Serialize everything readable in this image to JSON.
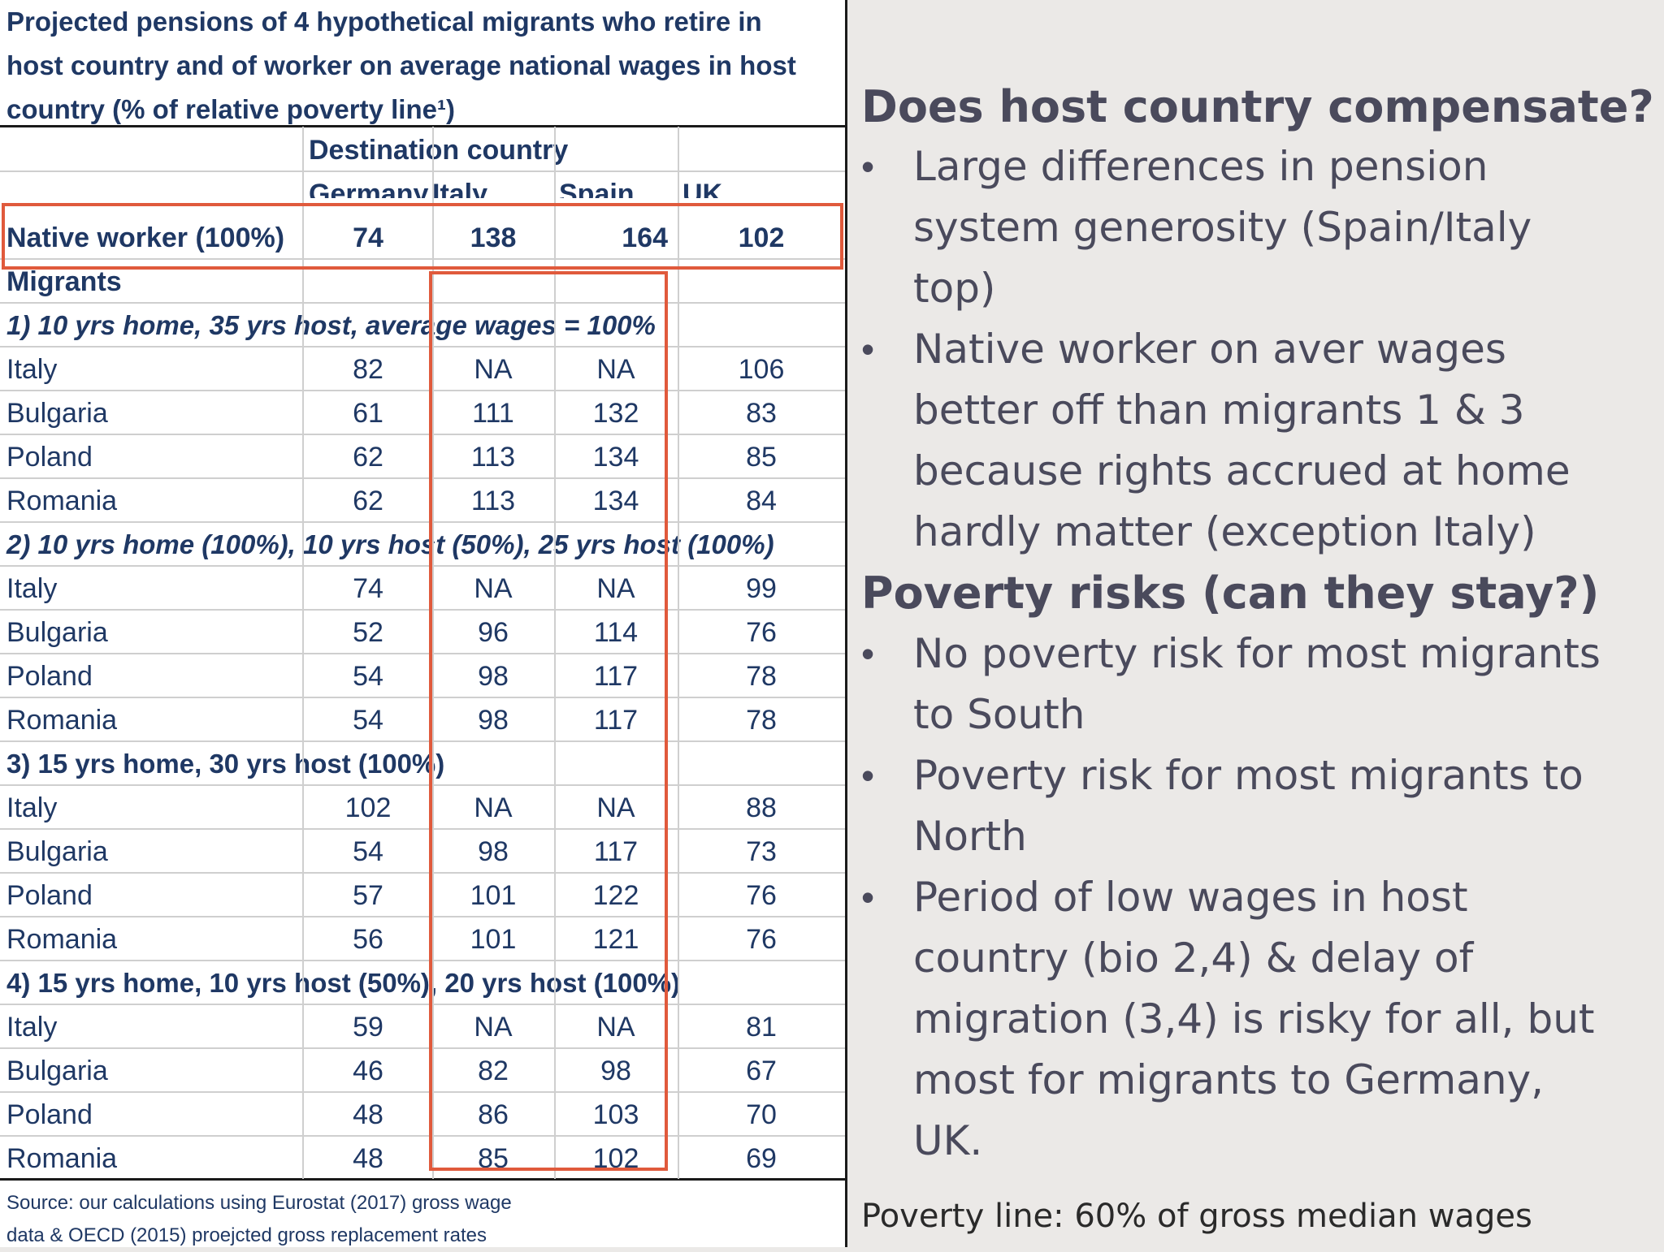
{
  "table": {
    "title_lines": [
      "Projected pensions of 4 hypothetical migrants who retire in",
      "host country and of worker on average national wages in host",
      "country (% of relative poverty line¹)"
    ],
    "group_header": "Destination country",
    "columns": [
      "Germany",
      "Italy",
      "Spain",
      "UK"
    ],
    "native": {
      "label": "Native worker (100%)",
      "values": [
        "74",
        "138",
        "164",
        "102"
      ]
    },
    "migrants_label": "Migrants",
    "sections": [
      {
        "title": "1) 10 yrs home, 35 yrs host, average wages = 100%",
        "rows": [
          {
            "label": "Italy",
            "values": [
              "82",
              "NA",
              "NA",
              "106"
            ]
          },
          {
            "label": "Bulgaria",
            "values": [
              "61",
              "111",
              "132",
              "83"
            ]
          },
          {
            "label": "Poland",
            "values": [
              "62",
              "113",
              "134",
              "85"
            ]
          },
          {
            "label": "Romania",
            "values": [
              "62",
              "113",
              "134",
              "84"
            ]
          }
        ]
      },
      {
        "title": "2) 10 yrs home (100%),  10 yrs host (50%), 25 yrs host (100%)",
        "rows": [
          {
            "label": "Italy",
            "values": [
              "74",
              "NA",
              "NA",
              "99"
            ]
          },
          {
            "label": "Bulgaria",
            "values": [
              "52",
              "96",
              "114",
              "76"
            ]
          },
          {
            "label": "Poland",
            "values": [
              "54",
              "98",
              "117",
              "78"
            ]
          },
          {
            "label": "Romania",
            "values": [
              "54",
              "98",
              "117",
              "78"
            ]
          }
        ]
      },
      {
        "title": "3) 15 yrs home, 30 yrs host (100%)",
        "rows": [
          {
            "label": "Italy",
            "values": [
              "102",
              "NA",
              "NA",
              "88"
            ]
          },
          {
            "label": "Bulgaria",
            "values": [
              "54",
              "98",
              "117",
              "73"
            ]
          },
          {
            "label": "Poland",
            "values": [
              "57",
              "101",
              "122",
              "76"
            ]
          },
          {
            "label": "Romania",
            "values": [
              "56",
              "101",
              "121",
              "76"
            ]
          }
        ]
      },
      {
        "title": "4) 15 yrs home, 10 yrs host (50%), 20 yrs host (100%)",
        "rows": [
          {
            "label": "Italy",
            "values": [
              "59",
              "NA",
              "NA",
              "81"
            ]
          },
          {
            "label": "Bulgaria",
            "values": [
              "46",
              "82",
              "98",
              "67"
            ]
          },
          {
            "label": "Poland",
            "values": [
              "48",
              "86",
              "103",
              "70"
            ]
          },
          {
            "label": "Romania",
            "values": [
              "48",
              "85",
              "102",
              "69"
            ]
          }
        ]
      }
    ],
    "source_lines": [
      "Source: our calculations using Eurostat (2017) gross wage",
      "data & OECD (2015) proejcted gross replacement rates"
    ]
  },
  "right": {
    "heading1": "Does host country compensate?",
    "bullets1": [
      [
        "Large differences in pension",
        "system generosity (Spain/Italy",
        "top)"
      ],
      [
        "Native worker on aver wages",
        "better off than migrants 1 & 3",
        "because rights accrued at home",
        "hardly matter (exception Italy)"
      ]
    ],
    "heading2": "Poverty risks (can they stay?)",
    "bullets2": [
      [
        "No poverty risk for most migrants",
        "to South"
      ],
      [
        "Poverty risk for most migrants to",
        "North"
      ],
      [
        "Period of low wages in host",
        "country (bio 2,4) & delay of",
        "migration (3,4) is risky for all, but",
        "most for migrants to Germany,",
        "UK."
      ]
    ],
    "footer": "Poverty line: 60% of gross median wages"
  },
  "colors": {
    "table_text": "#1f3864",
    "highlight_box": "#e05a3c",
    "bullet_text": "#4a4a5c"
  }
}
